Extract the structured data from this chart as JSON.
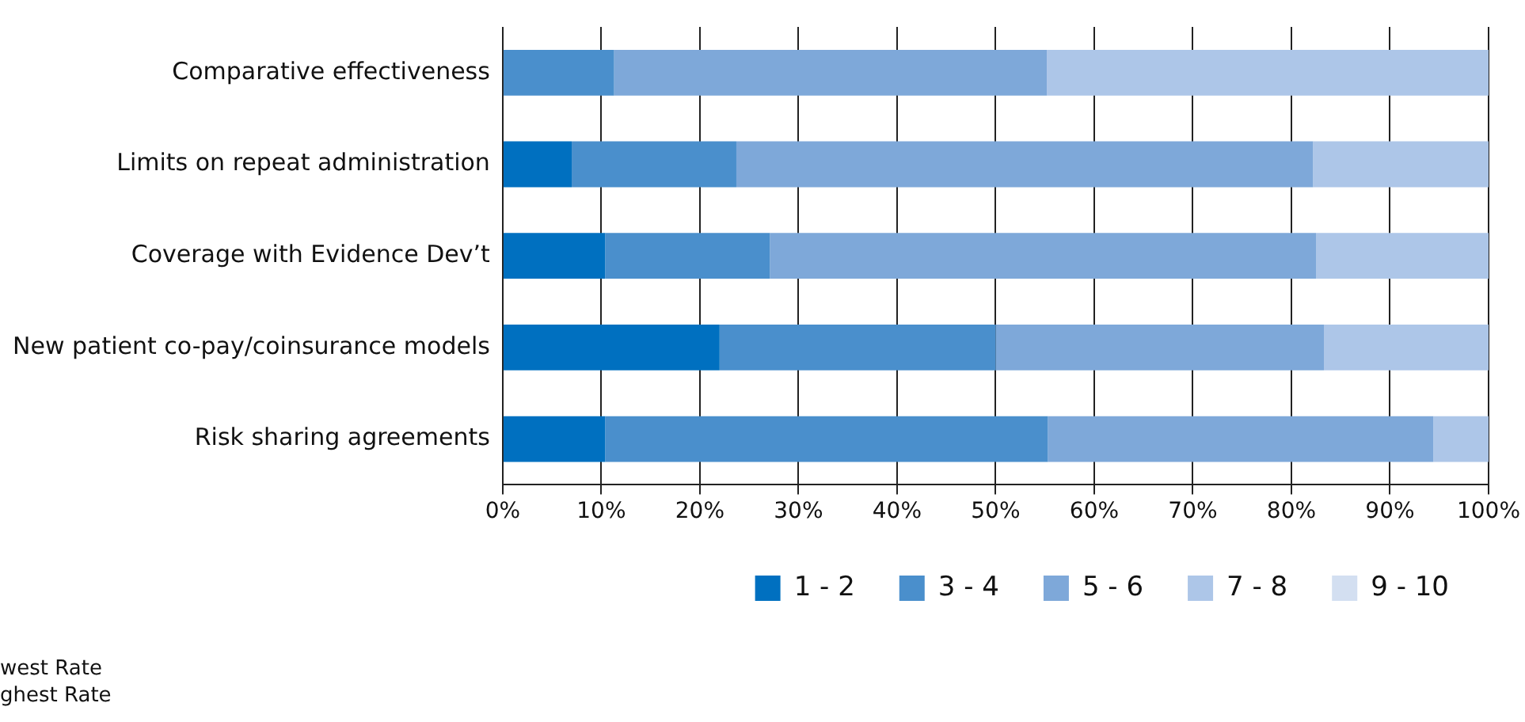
{
  "chart_data": {
    "type": "bar",
    "orientation": "horizontal",
    "stacked": true,
    "categories": [
      "Comparative effectiveness",
      "Limits on repeat administration",
      "Coverage with Evidence Dev’t",
      "New patient co-pay/coinsurance models",
      "Risk sharing agreements"
    ],
    "series": [
      {
        "name": "1 - 2",
        "color": "#0070c0",
        "values": [
          0,
          7,
          10.4,
          22,
          10.4
        ]
      },
      {
        "name": "3 - 4",
        "color": "#4a8fcc",
        "values": [
          11.3,
          16.7,
          16.7,
          28,
          44.9
        ]
      },
      {
        "name": "5 - 6",
        "color": "#7ea8d9",
        "values": [
          43.9,
          58.5,
          55.4,
          33.3,
          39.1
        ]
      },
      {
        "name": "7 - 8",
        "color": "#adc6e8",
        "values": [
          44.8,
          17.8,
          17.5,
          16.7,
          5.6
        ]
      },
      {
        "name": "9 - 10",
        "color": "#d3dff1",
        "values": [
          0,
          0,
          0,
          0,
          0
        ]
      }
    ],
    "xlim": [
      0,
      100
    ],
    "xticks": [
      {
        "value": 0,
        "label": "0%"
      },
      {
        "value": 10,
        "label": "10%"
      },
      {
        "value": 20,
        "label": "20%"
      },
      {
        "value": 30,
        "label": "30%"
      },
      {
        "value": 40,
        "label": "40%"
      },
      {
        "value": 50,
        "label": "50%"
      },
      {
        "value": 60,
        "label": "60%"
      },
      {
        "value": 70,
        "label": "70%"
      },
      {
        "value": 80,
        "label": "80%"
      },
      {
        "value": 90,
        "label": "90%"
      },
      {
        "value": 100,
        "label": "100%"
      }
    ],
    "grid": "x",
    "legend": "bottom",
    "annotations": [
      "west Rate",
      "ghest Rate"
    ]
  }
}
